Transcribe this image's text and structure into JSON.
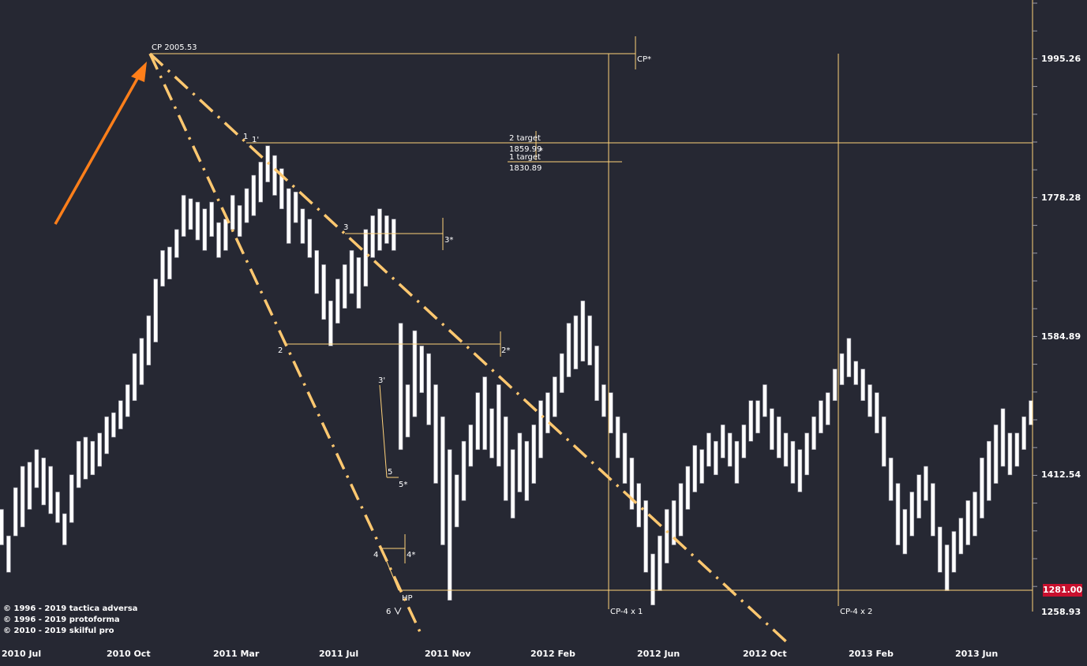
{
  "copyright": [
    "© 1996 - 2019 tactica adversa",
    "© 1996 - 2019 protoforma",
    "© 2010 - 2019 skilful pro"
  ],
  "current_price": "1281.00",
  "chart_data": {
    "type": "bar",
    "subtype": "ohlc-price-bars",
    "y_ticks": [
      "1995.26",
      "1778.28",
      "1584.89",
      "1412.54",
      "1258.93"
    ],
    "x_ticks": [
      "2010 Jul",
      "2010 Oct",
      "2011 Mar",
      "2011 Jul",
      "2011 Nov",
      "2012 Feb",
      "2012 Jun",
      "2012 Oct",
      "2013 Feb",
      "2013 Jun"
    ],
    "bar_color": "#ffffff",
    "line_color": "#ffd27a",
    "arrow_color": "#ff7f1a",
    "trend_color": "#ffc870",
    "annotations": {
      "cp": "CP 2005.53",
      "cp_star": "CP*",
      "target2": "2 target",
      "target2_value": "1859.99",
      "target1": "1 target",
      "target1_value": "1830.89",
      "p1": "1",
      "p1p": "1'",
      "p2": "2",
      "p2s": "2*",
      "p3": "3",
      "p3s": "3*",
      "p3p": "3'",
      "p4": "4",
      "p4s": "4*",
      "p5": "5",
      "p5s": "5*",
      "p6": "6",
      "hp": "HP",
      "cp4x1": "CP-4 x 1",
      "cp4x2": "CP-4 x 2"
    },
    "price_bars": [
      [
        1330,
        1370
      ],
      [
        1300,
        1340
      ],
      [
        1340,
        1395
      ],
      [
        1350,
        1420
      ],
      [
        1370,
        1425
      ],
      [
        1395,
        1440
      ],
      [
        1375,
        1430
      ],
      [
        1365,
        1420
      ],
      [
        1355,
        1390
      ],
      [
        1330,
        1365
      ],
      [
        1355,
        1410
      ],
      [
        1395,
        1450
      ],
      [
        1405,
        1455
      ],
      [
        1410,
        1450
      ],
      [
        1420,
        1460
      ],
      [
        1435,
        1480
      ],
      [
        1455,
        1485
      ],
      [
        1465,
        1500
      ],
      [
        1480,
        1520
      ],
      [
        1500,
        1560
      ],
      [
        1520,
        1580
      ],
      [
        1545,
        1610
      ],
      [
        1575,
        1660
      ],
      [
        1650,
        1700
      ],
      [
        1660,
        1705
      ],
      [
        1690,
        1730
      ],
      [
        1720,
        1780
      ],
      [
        1730,
        1775
      ],
      [
        1715,
        1770
      ],
      [
        1700,
        1760
      ],
      [
        1720,
        1770
      ],
      [
        1690,
        1740
      ],
      [
        1700,
        1745
      ],
      [
        1730,
        1780
      ],
      [
        1720,
        1765
      ],
      [
        1740,
        1790
      ],
      [
        1750,
        1810
      ],
      [
        1770,
        1830
      ],
      [
        1800,
        1855
      ],
      [
        1780,
        1840
      ],
      [
        1760,
        1820
      ],
      [
        1710,
        1790
      ],
      [
        1740,
        1785
      ],
      [
        1710,
        1760
      ],
      [
        1690,
        1745
      ],
      [
        1640,
        1700
      ],
      [
        1605,
        1680
      ],
      [
        1570,
        1630
      ],
      [
        1600,
        1660
      ],
      [
        1620,
        1680
      ],
      [
        1640,
        1700
      ],
      [
        1620,
        1690
      ],
      [
        1650,
        1730
      ],
      [
        1690,
        1750
      ],
      [
        1700,
        1760
      ],
      [
        1710,
        1750
      ],
      [
        1700,
        1745
      ],
      [
        1440,
        1600
      ],
      [
        1455,
        1520
      ],
      [
        1480,
        1590
      ],
      [
        1510,
        1570
      ],
      [
        1470,
        1560
      ],
      [
        1400,
        1520
      ],
      [
        1330,
        1480
      ],
      [
        1270,
        1440
      ],
      [
        1350,
        1410
      ],
      [
        1380,
        1450
      ],
      [
        1420,
        1470
      ],
      [
        1440,
        1510
      ],
      [
        1440,
        1530
      ],
      [
        1430,
        1490
      ],
      [
        1420,
        1520
      ],
      [
        1380,
        1480
      ],
      [
        1360,
        1440
      ],
      [
        1390,
        1460
      ],
      [
        1380,
        1450
      ],
      [
        1400,
        1470
      ],
      [
        1430,
        1500
      ],
      [
        1460,
        1510
      ],
      [
        1480,
        1530
      ],
      [
        1510,
        1560
      ],
      [
        1530,
        1600
      ],
      [
        1540,
        1610
      ],
      [
        1550,
        1630
      ],
      [
        1545,
        1610
      ],
      [
        1500,
        1570
      ],
      [
        1480,
        1520
      ],
      [
        1460,
        1510
      ],
      [
        1430,
        1480
      ],
      [
        1400,
        1460
      ],
      [
        1370,
        1430
      ],
      [
        1350,
        1400
      ],
      [
        1300,
        1380
      ],
      [
        1265,
        1320
      ],
      [
        1280,
        1340
      ],
      [
        1310,
        1370
      ],
      [
        1330,
        1380
      ],
      [
        1340,
        1400
      ],
      [
        1370,
        1420
      ],
      [
        1390,
        1445
      ],
      [
        1400,
        1440
      ],
      [
        1420,
        1460
      ],
      [
        1410,
        1450
      ],
      [
        1430,
        1470
      ],
      [
        1420,
        1460
      ],
      [
        1400,
        1450
      ],
      [
        1430,
        1470
      ],
      [
        1450,
        1500
      ],
      [
        1460,
        1500
      ],
      [
        1480,
        1520
      ],
      [
        1440,
        1490
      ],
      [
        1430,
        1480
      ],
      [
        1420,
        1460
      ],
      [
        1400,
        1450
      ],
      [
        1390,
        1440
      ],
      [
        1410,
        1460
      ],
      [
        1440,
        1480
      ],
      [
        1460,
        1500
      ],
      [
        1470,
        1510
      ],
      [
        1500,
        1540
      ],
      [
        1520,
        1560
      ],
      [
        1530,
        1580
      ],
      [
        1520,
        1550
      ],
      [
        1500,
        1540
      ],
      [
        1480,
        1520
      ],
      [
        1460,
        1510
      ],
      [
        1420,
        1480
      ],
      [
        1380,
        1430
      ],
      [
        1330,
        1400
      ],
      [
        1320,
        1370
      ],
      [
        1340,
        1390
      ],
      [
        1360,
        1410
      ],
      [
        1380,
        1420
      ],
      [
        1340,
        1400
      ],
      [
        1300,
        1350
      ],
      [
        1280,
        1330
      ],
      [
        1300,
        1345
      ],
      [
        1320,
        1360
      ],
      [
        1330,
        1380
      ],
      [
        1340,
        1390
      ],
      [
        1360,
        1430
      ],
      [
        1380,
        1450
      ],
      [
        1400,
        1470
      ],
      [
        1420,
        1490
      ],
      [
        1410,
        1460
      ],
      [
        1420,
        1460
      ],
      [
        1440,
        1480
      ],
      [
        1470,
        1500
      ]
    ]
  }
}
